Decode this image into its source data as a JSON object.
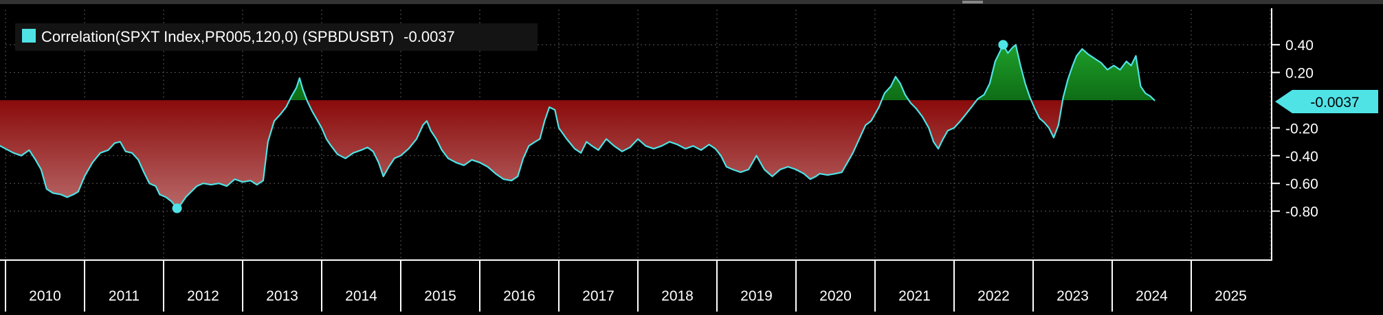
{
  "chart_data": {
    "type": "area",
    "title": "",
    "xlabel": "",
    "ylabel": "",
    "legend": {
      "label": "Correlation(SPXT Index,PR005,120,0) (SPBDUSBT)",
      "value": "-0.0037",
      "color": "#4fe3e6",
      "placement": "top-left"
    },
    "last_value_label": "-0.0037",
    "xlim": [
      2010.0,
      2026.0
    ],
    "ylim": [
      -0.9,
      0.5
    ],
    "y_ticks": [
      {
        "value": 0.4,
        "label": "0.40"
      },
      {
        "value": 0.2,
        "label": "0.20"
      },
      {
        "value": -0.2,
        "label": "-0.20"
      },
      {
        "value": -0.4,
        "label": "-0.40"
      },
      {
        "value": -0.6,
        "label": "-0.60"
      },
      {
        "value": -0.8,
        "label": "-0.80"
      }
    ],
    "x_ticks": [
      {
        "value": 2010,
        "label": "2010"
      },
      {
        "value": 2011,
        "label": "2011"
      },
      {
        "value": 2012,
        "label": "2012"
      },
      {
        "value": 2013,
        "label": "2013"
      },
      {
        "value": 2014,
        "label": "2014"
      },
      {
        "value": 2015,
        "label": "2015"
      },
      {
        "value": 2016,
        "label": "2016"
      },
      {
        "value": 2017,
        "label": "2017"
      },
      {
        "value": 2018,
        "label": "2018"
      },
      {
        "value": 2019,
        "label": "2019"
      },
      {
        "value": 2020,
        "label": "2020"
      },
      {
        "value": 2021,
        "label": "2021"
      },
      {
        "value": 2022,
        "label": "2022"
      },
      {
        "value": 2023,
        "label": "2023"
      },
      {
        "value": 2024,
        "label": "2024"
      },
      {
        "value": 2025,
        "label": "2025"
      }
    ],
    "colors": {
      "line": "#4fe3e6",
      "positive_fill": "#1f9a2a",
      "negative_fill": "#b01010",
      "background": "#000000",
      "gridline": "#5a5a5a",
      "axis_text": "#ffffff"
    },
    "markers": [
      {
        "x": 2012.17,
        "y": -0.78
      },
      {
        "x": 2022.62,
        "y": 0.4
      }
    ],
    "series": [
      {
        "name": "Correlation(SPXT Index,PR005,120,0) (SPBDUSBT)",
        "points": [
          [
            2009.9,
            -0.32
          ],
          [
            2010.0,
            -0.35
          ],
          [
            2010.1,
            -0.38
          ],
          [
            2010.2,
            -0.4
          ],
          [
            2010.3,
            -0.36
          ],
          [
            2010.38,
            -0.43
          ],
          [
            2010.45,
            -0.5
          ],
          [
            2010.52,
            -0.64
          ],
          [
            2010.6,
            -0.67
          ],
          [
            2010.7,
            -0.68
          ],
          [
            2010.78,
            -0.7
          ],
          [
            2010.86,
            -0.68
          ],
          [
            2010.92,
            -0.66
          ],
          [
            2011.0,
            -0.55
          ],
          [
            2011.1,
            -0.45
          ],
          [
            2011.2,
            -0.38
          ],
          [
            2011.3,
            -0.36
          ],
          [
            2011.38,
            -0.31
          ],
          [
            2011.45,
            -0.3
          ],
          [
            2011.52,
            -0.37
          ],
          [
            2011.6,
            -0.38
          ],
          [
            2011.68,
            -0.43
          ],
          [
            2011.75,
            -0.52
          ],
          [
            2011.82,
            -0.6
          ],
          [
            2011.9,
            -0.62
          ],
          [
            2011.95,
            -0.68
          ],
          [
            2012.03,
            -0.7
          ],
          [
            2012.1,
            -0.73
          ],
          [
            2012.17,
            -0.78
          ],
          [
            2012.22,
            -0.75
          ],
          [
            2012.28,
            -0.7
          ],
          [
            2012.35,
            -0.66
          ],
          [
            2012.42,
            -0.62
          ],
          [
            2012.5,
            -0.6
          ],
          [
            2012.6,
            -0.61
          ],
          [
            2012.7,
            -0.6
          ],
          [
            2012.8,
            -0.62
          ],
          [
            2012.9,
            -0.57
          ],
          [
            2013.0,
            -0.59
          ],
          [
            2013.1,
            -0.58
          ],
          [
            2013.18,
            -0.61
          ],
          [
            2013.26,
            -0.58
          ],
          [
            2013.32,
            -0.3
          ],
          [
            2013.4,
            -0.15
          ],
          [
            2013.48,
            -0.1
          ],
          [
            2013.55,
            -0.05
          ],
          [
            2013.62,
            0.03
          ],
          [
            2013.68,
            0.09
          ],
          [
            2013.72,
            0.16
          ],
          [
            2013.76,
            0.08
          ],
          [
            2013.82,
            -0.01
          ],
          [
            2013.88,
            -0.08
          ],
          [
            2013.95,
            -0.15
          ],
          [
            2014.0,
            -0.2
          ],
          [
            2014.06,
            -0.28
          ],
          [
            2014.12,
            -0.33
          ],
          [
            2014.2,
            -0.39
          ],
          [
            2014.3,
            -0.42
          ],
          [
            2014.4,
            -0.38
          ],
          [
            2014.5,
            -0.36
          ],
          [
            2014.58,
            -0.34
          ],
          [
            2014.65,
            -0.37
          ],
          [
            2014.72,
            -0.45
          ],
          [
            2014.78,
            -0.55
          ],
          [
            2014.85,
            -0.48
          ],
          [
            2014.92,
            -0.42
          ],
          [
            2015.0,
            -0.4
          ],
          [
            2015.1,
            -0.35
          ],
          [
            2015.2,
            -0.28
          ],
          [
            2015.28,
            -0.18
          ],
          [
            2015.33,
            -0.15
          ],
          [
            2015.38,
            -0.22
          ],
          [
            2015.45,
            -0.28
          ],
          [
            2015.52,
            -0.36
          ],
          [
            2015.6,
            -0.42
          ],
          [
            2015.7,
            -0.45
          ],
          [
            2015.8,
            -0.47
          ],
          [
            2015.9,
            -0.43
          ],
          [
            2016.0,
            -0.45
          ],
          [
            2016.1,
            -0.48
          ],
          [
            2016.2,
            -0.53
          ],
          [
            2016.3,
            -0.57
          ],
          [
            2016.4,
            -0.58
          ],
          [
            2016.48,
            -0.55
          ],
          [
            2016.55,
            -0.42
          ],
          [
            2016.62,
            -0.33
          ],
          [
            2016.7,
            -0.3
          ],
          [
            2016.76,
            -0.28
          ],
          [
            2016.82,
            -0.15
          ],
          [
            2016.88,
            -0.05
          ],
          [
            2016.95,
            -0.07
          ],
          [
            2017.0,
            -0.2
          ],
          [
            2017.1,
            -0.28
          ],
          [
            2017.2,
            -0.35
          ],
          [
            2017.28,
            -0.38
          ],
          [
            2017.35,
            -0.3
          ],
          [
            2017.42,
            -0.33
          ],
          [
            2017.5,
            -0.36
          ],
          [
            2017.6,
            -0.28
          ],
          [
            2017.7,
            -0.33
          ],
          [
            2017.8,
            -0.37
          ],
          [
            2017.9,
            -0.34
          ],
          [
            2018.0,
            -0.28
          ],
          [
            2018.1,
            -0.33
          ],
          [
            2018.2,
            -0.35
          ],
          [
            2018.3,
            -0.33
          ],
          [
            2018.4,
            -0.3
          ],
          [
            2018.5,
            -0.32
          ],
          [
            2018.6,
            -0.35
          ],
          [
            2018.7,
            -0.33
          ],
          [
            2018.8,
            -0.36
          ],
          [
            2018.9,
            -0.32
          ],
          [
            2018.98,
            -0.35
          ],
          [
            2019.05,
            -0.4
          ],
          [
            2019.12,
            -0.48
          ],
          [
            2019.2,
            -0.5
          ],
          [
            2019.3,
            -0.52
          ],
          [
            2019.4,
            -0.5
          ],
          [
            2019.5,
            -0.4
          ],
          [
            2019.6,
            -0.5
          ],
          [
            2019.7,
            -0.55
          ],
          [
            2019.8,
            -0.5
          ],
          [
            2019.9,
            -0.48
          ],
          [
            2020.0,
            -0.5
          ],
          [
            2020.1,
            -0.53
          ],
          [
            2020.18,
            -0.57
          ],
          [
            2020.25,
            -0.55
          ],
          [
            2020.3,
            -0.53
          ],
          [
            2020.4,
            -0.54
          ],
          [
            2020.5,
            -0.53
          ],
          [
            2020.58,
            -0.52
          ],
          [
            2020.65,
            -0.45
          ],
          [
            2020.72,
            -0.38
          ],
          [
            2020.8,
            -0.28
          ],
          [
            2020.88,
            -0.18
          ],
          [
            2020.95,
            -0.15
          ],
          [
            2021.05,
            -0.05
          ],
          [
            2021.12,
            0.05
          ],
          [
            2021.2,
            0.1
          ],
          [
            2021.26,
            0.17
          ],
          [
            2021.32,
            0.12
          ],
          [
            2021.38,
            0.04
          ],
          [
            2021.45,
            -0.02
          ],
          [
            2021.52,
            -0.06
          ],
          [
            2021.6,
            -0.12
          ],
          [
            2021.68,
            -0.2
          ],
          [
            2021.74,
            -0.3
          ],
          [
            2021.8,
            -0.35
          ],
          [
            2021.86,
            -0.28
          ],
          [
            2021.92,
            -0.22
          ],
          [
            2022.0,
            -0.2
          ],
          [
            2022.08,
            -0.15
          ],
          [
            2022.15,
            -0.1
          ],
          [
            2022.22,
            -0.05
          ],
          [
            2022.3,
            0.01
          ],
          [
            2022.38,
            0.04
          ],
          [
            2022.45,
            0.12
          ],
          [
            2022.52,
            0.28
          ],
          [
            2022.58,
            0.35
          ],
          [
            2022.62,
            0.4
          ],
          [
            2022.68,
            0.34
          ],
          [
            2022.74,
            0.38
          ],
          [
            2022.78,
            0.4
          ],
          [
            2022.84,
            0.25
          ],
          [
            2022.9,
            0.12
          ],
          [
            2022.96,
            0.02
          ],
          [
            2023.02,
            -0.06
          ],
          [
            2023.08,
            -0.13
          ],
          [
            2023.14,
            -0.16
          ],
          [
            2023.2,
            -0.2
          ],
          [
            2023.26,
            -0.27
          ],
          [
            2023.32,
            -0.18
          ],
          [
            2023.38,
            0.02
          ],
          [
            2023.44,
            0.15
          ],
          [
            2023.5,
            0.25
          ],
          [
            2023.55,
            0.32
          ],
          [
            2023.62,
            0.37
          ],
          [
            2023.7,
            0.33
          ],
          [
            2023.78,
            0.3
          ],
          [
            2023.86,
            0.27
          ],
          [
            2023.94,
            0.22
          ],
          [
            2024.02,
            0.25
          ],
          [
            2024.1,
            0.22
          ],
          [
            2024.18,
            0.28
          ],
          [
            2024.24,
            0.25
          ],
          [
            2024.3,
            0.32
          ],
          [
            2024.36,
            0.1
          ],
          [
            2024.42,
            0.05
          ],
          [
            2024.48,
            0.03
          ],
          [
            2024.54,
            -0.0037
          ]
        ]
      }
    ]
  }
}
